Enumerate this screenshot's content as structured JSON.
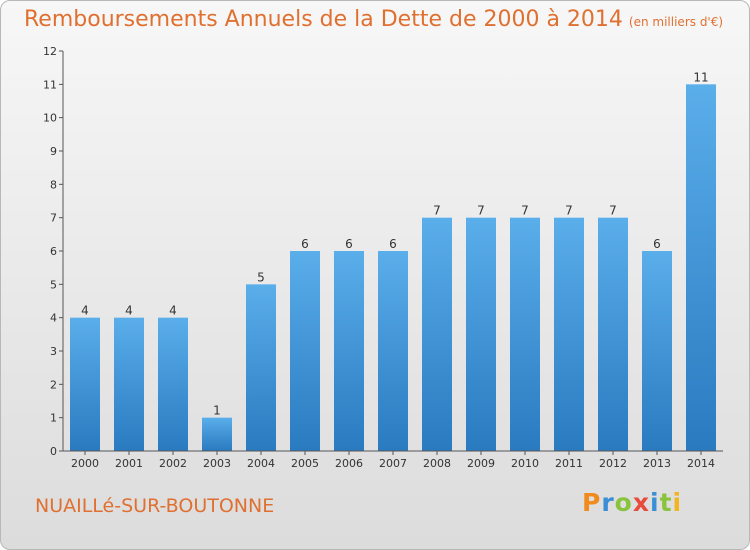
{
  "header": {
    "title": "Remboursements Annuels de la Dette de 2000 à 2014",
    "subtitle": "(en milliers d'€)"
  },
  "footer": {
    "commune": "NUAILLé-SUR-BOUTONNE",
    "logo_text": "Proxiti"
  },
  "colors": {
    "bar": "#3a8ed6",
    "title": "#e07030"
  },
  "chart_data": {
    "type": "bar",
    "title": "Remboursements Annuels de la Dette de 2000 à 2014",
    "subtitle": "(en milliers d'€)",
    "categories": [
      "2000",
      "2001",
      "2002",
      "2003",
      "2004",
      "2005",
      "2006",
      "2007",
      "2008",
      "2009",
      "2010",
      "2011",
      "2012",
      "2013",
      "2014"
    ],
    "values": [
      4,
      4,
      4,
      1,
      5,
      6,
      6,
      6,
      7,
      7,
      7,
      7,
      7,
      6,
      11
    ],
    "data_labels": [
      "4",
      "4",
      "4",
      "1",
      "5",
      "6",
      "6",
      "6",
      "7",
      "7",
      "7",
      "7",
      "7",
      "6",
      "11"
    ],
    "yticks": [
      "0",
      "1",
      "2",
      "3",
      "4",
      "5",
      "6",
      "7",
      "8",
      "9",
      "10",
      "11",
      "12"
    ],
    "ylim": [
      0,
      12
    ],
    "grid": false,
    "legend": "none"
  }
}
